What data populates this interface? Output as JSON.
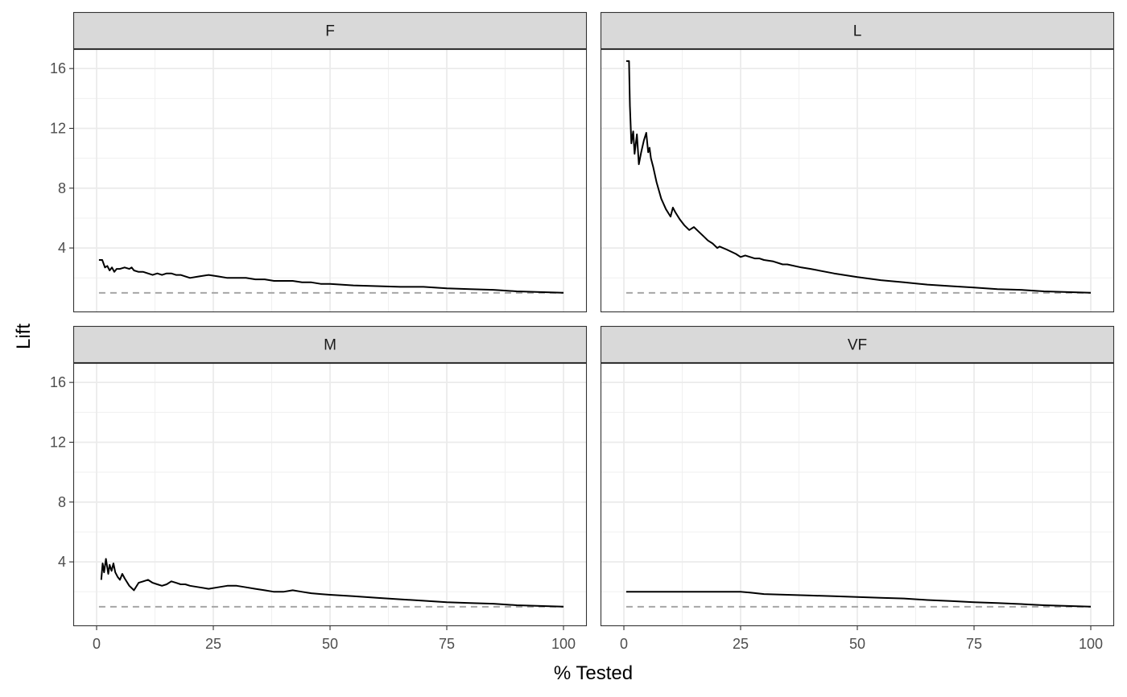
{
  "chart_data": {
    "type": "line",
    "facets": [
      "F",
      "L",
      "M",
      "VF"
    ],
    "xlabel": "% Tested",
    "ylabel": "Lift",
    "xlim": [
      0,
      100
    ],
    "ylim": [
      0,
      17
    ],
    "x_ticks": [
      0,
      25,
      50,
      75,
      100
    ],
    "y_ticks": [
      4,
      8,
      12,
      16
    ],
    "x_tick_labels": [
      "0",
      "25",
      "50",
      "75",
      "100"
    ],
    "y_tick_labels": [
      "4",
      "8",
      "12",
      "16"
    ],
    "grid": true,
    "baseline": {
      "value": 1,
      "style": "dashed",
      "color": "#a6a6a6"
    },
    "line_color": "#000000",
    "series": [
      {
        "facet": "F",
        "x": [
          0.5,
          1.2,
          1.8,
          2.3,
          2.8,
          3.3,
          3.8,
          4.3,
          5,
          6,
          7,
          7.5,
          8,
          9,
          10,
          11,
          12,
          13,
          14,
          15,
          16,
          17,
          18,
          19,
          20,
          22,
          24,
          26,
          28,
          30,
          32,
          34,
          36,
          38,
          40,
          42,
          44,
          46,
          48,
          50,
          55,
          60,
          65,
          70,
          75,
          80,
          85,
          90,
          95,
          100
        ],
        "y": [
          3.2,
          3.2,
          2.7,
          2.8,
          2.5,
          2.7,
          2.4,
          2.6,
          2.6,
          2.7,
          2.6,
          2.7,
          2.5,
          2.4,
          2.4,
          2.3,
          2.2,
          2.3,
          2.2,
          2.3,
          2.3,
          2.2,
          2.2,
          2.1,
          2.0,
          2.1,
          2.2,
          2.1,
          2.0,
          2.0,
          2.0,
          1.9,
          1.9,
          1.8,
          1.8,
          1.8,
          1.7,
          1.7,
          1.6,
          1.6,
          1.5,
          1.45,
          1.4,
          1.4,
          1.3,
          1.25,
          1.2,
          1.1,
          1.05,
          1.0
        ]
      },
      {
        "facet": "L",
        "x": [
          0.5,
          1.1,
          1.3,
          1.6,
          2.0,
          2.3,
          2.8,
          3.2,
          3.7,
          4.3,
          4.8,
          5.2,
          5.5,
          5.8,
          6.3,
          7,
          8,
          9,
          10,
          10.5,
          11,
          12,
          13,
          14,
          15,
          16,
          17,
          18,
          19,
          20,
          20.5,
          22,
          24,
          25,
          26,
          28,
          29,
          30,
          32,
          34,
          35,
          38,
          40,
          45,
          50,
          55,
          60,
          65,
          70,
          75,
          80,
          85,
          90,
          95,
          100
        ],
        "y": [
          16.5,
          16.5,
          13.5,
          11.0,
          11.8,
          10.3,
          11.6,
          9.6,
          10.4,
          11.2,
          11.7,
          10.4,
          10.7,
          10.0,
          9.4,
          8.4,
          7.3,
          6.6,
          6.1,
          6.7,
          6.4,
          5.9,
          5.5,
          5.2,
          5.4,
          5.1,
          4.8,
          4.5,
          4.3,
          4.0,
          4.1,
          3.9,
          3.6,
          3.4,
          3.5,
          3.3,
          3.3,
          3.2,
          3.1,
          2.9,
          2.9,
          2.7,
          2.6,
          2.3,
          2.05,
          1.85,
          1.7,
          1.55,
          1.45,
          1.35,
          1.25,
          1.2,
          1.1,
          1.05,
          1.0
        ]
      },
      {
        "facet": "M",
        "x": [
          1.0,
          1.3,
          1.6,
          2.0,
          2.5,
          2.8,
          3.2,
          3.6,
          4.0,
          4.5,
          5.0,
          5.5,
          6,
          7,
          8,
          9,
          10,
          11,
          12,
          13,
          14,
          15,
          16,
          17,
          18,
          19,
          20,
          22,
          24,
          26,
          28,
          30,
          32,
          34,
          36,
          38,
          40,
          42,
          44,
          46,
          48,
          50,
          55,
          60,
          65,
          70,
          75,
          80,
          85,
          90,
          95,
          100
        ],
        "y": [
          2.8,
          3.9,
          3.3,
          4.2,
          3.2,
          3.8,
          3.4,
          3.9,
          3.3,
          3.0,
          2.8,
          3.2,
          2.9,
          2.4,
          2.1,
          2.6,
          2.7,
          2.8,
          2.6,
          2.5,
          2.4,
          2.5,
          2.7,
          2.6,
          2.5,
          2.5,
          2.4,
          2.3,
          2.2,
          2.3,
          2.4,
          2.4,
          2.3,
          2.2,
          2.1,
          2.0,
          2.0,
          2.1,
          2.0,
          1.9,
          1.85,
          1.8,
          1.7,
          1.6,
          1.5,
          1.4,
          1.3,
          1.25,
          1.2,
          1.1,
          1.05,
          1.0
        ]
      },
      {
        "facet": "VF",
        "x": [
          0.5,
          5,
          10,
          15,
          20,
          25,
          27,
          30,
          35,
          40,
          45,
          50,
          55,
          60,
          65,
          70,
          75,
          80,
          85,
          90,
          95,
          100
        ],
        "y": [
          2.0,
          2.0,
          2.0,
          2.0,
          2.0,
          2.0,
          1.95,
          1.85,
          1.8,
          1.75,
          1.7,
          1.65,
          1.6,
          1.55,
          1.45,
          1.38,
          1.3,
          1.25,
          1.18,
          1.1,
          1.05,
          1.0
        ]
      }
    ]
  }
}
